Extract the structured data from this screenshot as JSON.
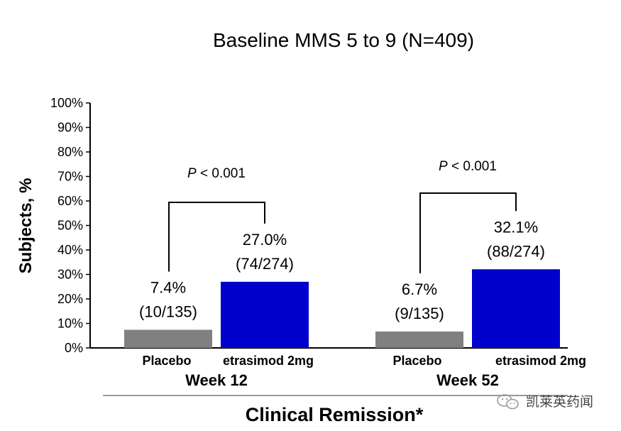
{
  "chart_data": {
    "type": "bar",
    "title": "Baseline MMS 5 to 9 (N=409)",
    "ylabel": "Subjects, %",
    "xlabel": "Clinical Remission*",
    "ylim": [
      0,
      100
    ],
    "yticks": [
      0,
      10,
      20,
      30,
      40,
      50,
      60,
      70,
      80,
      90,
      100
    ],
    "ytick_labels": [
      "0%",
      "10%",
      "20%",
      "30%",
      "40%",
      "50%",
      "60%",
      "70%",
      "80%",
      "90%",
      "100%"
    ],
    "grid": false,
    "legend": "none",
    "groups": [
      {
        "label": "Week 12",
        "pvalue": {
          "italic": "P",
          "text": " < 0.001"
        },
        "bars": [
          {
            "category": "Placebo",
            "value": 7.4,
            "label_pct": "7.4%",
            "label_n": "(10/135)",
            "color": "#808080"
          },
          {
            "category": "etrasimod 2mg",
            "value": 27.0,
            "label_pct": "27.0%",
            "label_n": "(74/274)",
            "color": "#0000CC"
          }
        ]
      },
      {
        "label": "Week 52",
        "pvalue": {
          "italic": "P",
          "text": " < 0.001"
        },
        "bars": [
          {
            "category": "Placebo",
            "value": 6.7,
            "label_pct": "6.7%",
            "label_n": "(9/135)",
            "color": "#808080"
          },
          {
            "category": "etrasimod 2mg",
            "value": 32.1,
            "label_pct": "32.1%",
            "label_n": "(88/274)",
            "color": "#0000CC"
          }
        ]
      }
    ]
  },
  "watermark": {
    "text": "凯莱英药闻"
  },
  "colors": {
    "placebo": "#808080",
    "etrasimod": "#0000CC",
    "axis": "#000000",
    "separator": "#999999"
  }
}
